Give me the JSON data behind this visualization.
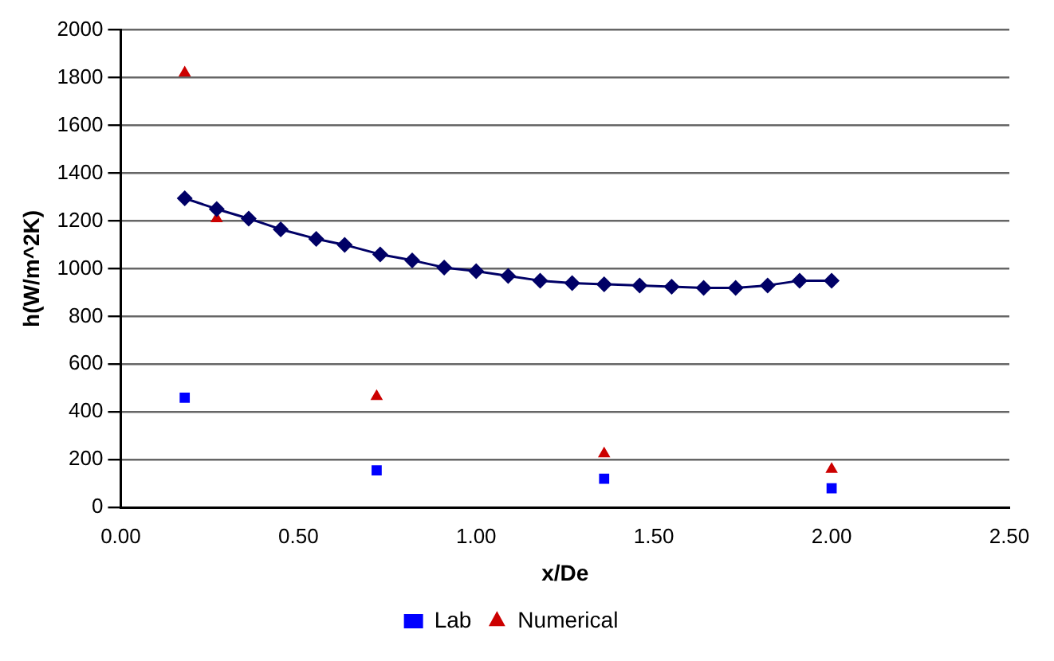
{
  "chart_data": {
    "type": "scatter",
    "xlabel": "x/De",
    "ylabel": "h(W/m^2K)",
    "xlim": [
      0,
      2.5
    ],
    "xticks": [
      {
        "value": 0,
        "label": "0.00"
      },
      {
        "value": 0.5,
        "label": "0.50"
      },
      {
        "value": 1,
        "label": "1.00"
      },
      {
        "value": 1.5,
        "label": "1.50"
      },
      {
        "value": 2,
        "label": "2.00"
      },
      {
        "value": 2.5,
        "label": "2.50"
      }
    ],
    "ylim": [
      0,
      2000
    ],
    "yticks": [
      0,
      200,
      400,
      600,
      800,
      1000,
      1200,
      1400,
      1600,
      1800,
      2000
    ],
    "grid": "y",
    "legend": "bottom",
    "series": [
      {
        "type": "line",
        "marker": "diamond",
        "color": "#000066",
        "x": [
          0.18,
          0.27,
          0.36,
          0.45,
          0.55,
          0.63,
          0.73,
          0.82,
          0.91,
          1.0,
          1.09,
          1.18,
          1.27,
          1.36,
          1.46,
          1.55,
          1.64,
          1.73,
          1.82,
          1.91,
          2.0
        ],
        "values": [
          1295,
          1250,
          1210,
          1165,
          1125,
          1100,
          1060,
          1035,
          1005,
          990,
          970,
          950,
          940,
          935,
          930,
          925,
          920,
          920,
          930,
          950,
          950
        ]
      },
      {
        "name": "Lab",
        "marker": "square",
        "color": "#0000ff",
        "x": [
          0.18,
          0.72,
          1.36,
          2.0
        ],
        "values": [
          460,
          155,
          120,
          80
        ]
      },
      {
        "name": "Numerical",
        "marker": "triangle",
        "color": "#cc0000",
        "x": [
          0.18,
          0.27,
          0.72,
          1.36,
          2.0
        ],
        "values": [
          1820,
          1210,
          465,
          225,
          160
        ]
      }
    ]
  }
}
